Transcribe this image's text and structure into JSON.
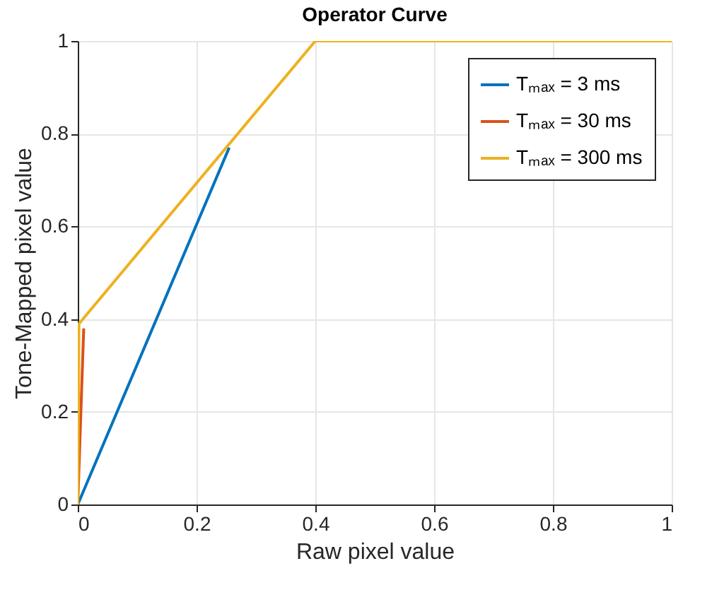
{
  "chart_data": {
    "type": "line",
    "title": "Operator Curve",
    "xlabel": "Raw pixel value",
    "ylabel": "Tone-Mapped pixel value",
    "series": [
      {
        "name": "Tₘₐₓ = 3 ms",
        "color": "#0072bd",
        "x": [
          0,
          0.255
        ],
        "values": [
          0,
          0.77
        ]
      },
      {
        "name": "Tₘₐₓ = 30 ms",
        "color": "#d95319",
        "x": [
          0,
          0.01
        ],
        "values": [
          0,
          0.38
        ]
      },
      {
        "name": "Tₘₐₓ = 300 ms",
        "color": "#edb120",
        "x": [
          0,
          0.002,
          0.4,
          1
        ],
        "values": [
          0,
          0.39,
          1,
          1
        ]
      }
    ],
    "xlim": [
      0,
      1
    ],
    "xticks": [
      0,
      0.2,
      0.4,
      0.6,
      0.8,
      1
    ],
    "ylim": [
      0,
      1
    ],
    "yticks": [
      0,
      0.2,
      0.4,
      0.6,
      0.8,
      1
    ],
    "grid": true,
    "legend": "top right",
    "marker": "none",
    "line_style": "solid"
  }
}
